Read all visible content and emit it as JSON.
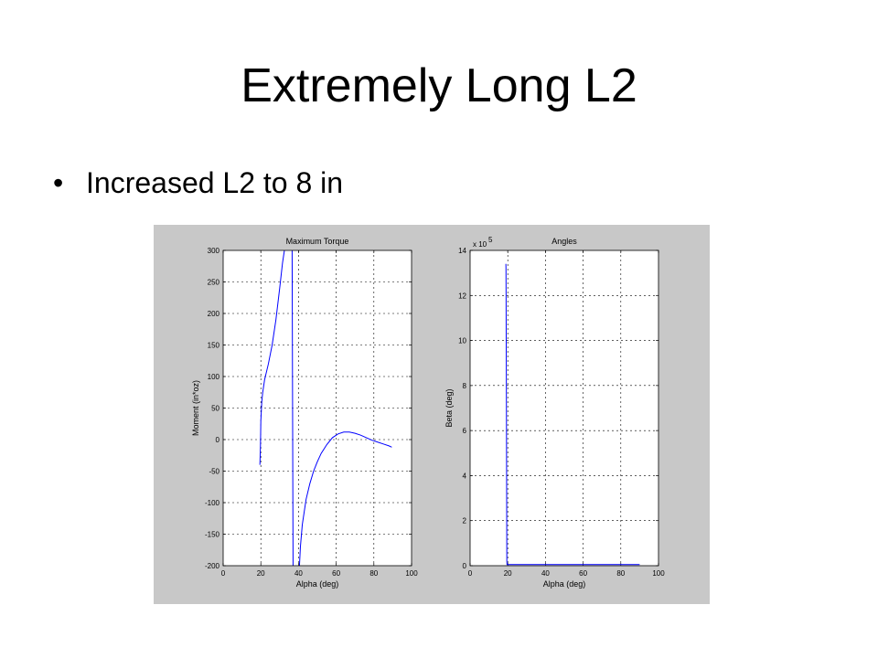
{
  "slide": {
    "title": "Extremely Long L2",
    "bullets": [
      "Increased L2 to 8 in"
    ]
  },
  "chart_data": [
    {
      "type": "line",
      "title": "Maximum Torque",
      "xlabel": "Alpha (deg)",
      "ylabel": "Moment (in*oz)",
      "xlim": [
        0,
        100
      ],
      "ylim": [
        -200,
        300
      ],
      "xticks": [
        "0",
        "20",
        "40",
        "60",
        "80",
        "100"
      ],
      "yticks": [
        "-200",
        "-150",
        "-100",
        "-50",
        "0",
        "50",
        "100",
        "150",
        "200",
        "250",
        "300"
      ],
      "grid": true,
      "color": "#0000ff",
      "series": [
        {
          "x": [
            19.5,
            19.8,
            20,
            20.5,
            21,
            22,
            24,
            26,
            28,
            30,
            31.5,
            32.5
          ],
          "y": [
            -40,
            -10,
            30,
            60,
            75,
            95,
            120,
            150,
            190,
            240,
            280,
            300
          ]
        },
        {
          "x": [
            36.6,
            36.8,
            37,
            37.1
          ],
          "y": [
            300,
            100,
            -100,
            -200
          ]
        },
        {
          "x": [
            40.5,
            41,
            42,
            44,
            46,
            48,
            50,
            52,
            55,
            58,
            61,
            64,
            67,
            70,
            73,
            76,
            79,
            82,
            85,
            88,
            89.5
          ],
          "y": [
            -200,
            -170,
            -135,
            -95,
            -70,
            -50,
            -35,
            -22,
            -8,
            3,
            9,
            12,
            12,
            10,
            7,
            3,
            -1,
            -4,
            -7,
            -10,
            -12
          ]
        }
      ]
    },
    {
      "type": "line",
      "title": "Angles",
      "xlabel": "Alpha (deg)",
      "ylabel": "Beta (deg)",
      "y_multiplier": "x 10",
      "y_multiplier_exp": "5",
      "xlim": [
        0,
        100
      ],
      "ylim": [
        0,
        14
      ],
      "xticks": [
        "0",
        "20",
        "40",
        "60",
        "80",
        "100"
      ],
      "yticks": [
        "0",
        "2",
        "4",
        "6",
        "8",
        "10",
        "12",
        "14"
      ],
      "grid": true,
      "color": "#0000ff",
      "series": [
        {
          "x": [
            19.0,
            19.05,
            19.1,
            19.3,
            19.5,
            19.6,
            20,
            40,
            60,
            80,
            90
          ],
          "y": [
            13.4,
            13.2,
            12,
            6.5,
            0.2,
            0.05,
            0.05,
            0.05,
            0.05,
            0.05,
            0.05
          ]
        }
      ]
    }
  ]
}
